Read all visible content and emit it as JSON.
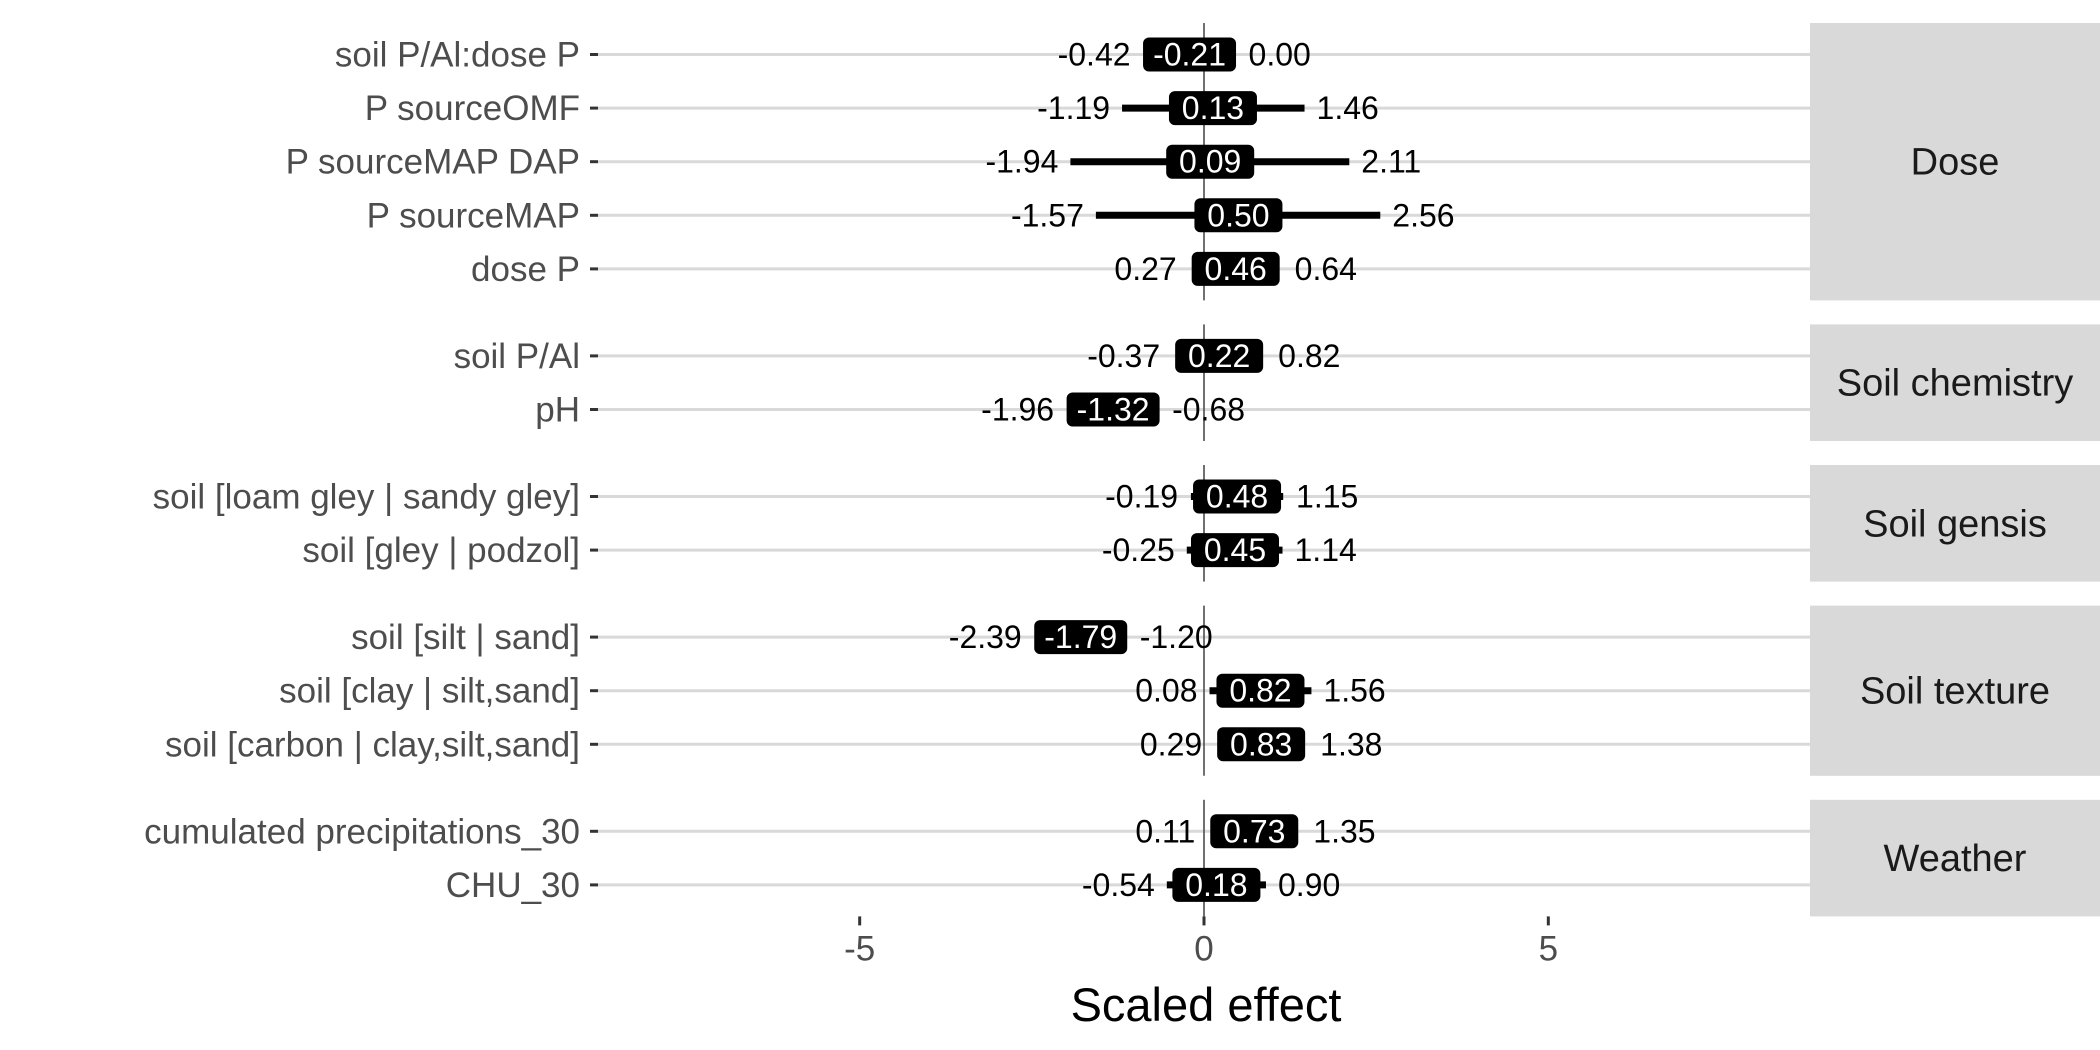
{
  "chart_data": {
    "type": "forest",
    "xlabel": "Scaled effect",
    "xlim": [
      -8.8,
      8.8
    ],
    "xticks": [
      -5,
      0,
      5
    ],
    "xtick_labels": [
      "-5",
      "0",
      "5"
    ],
    "reference_line_x": 0,
    "grid": "horizontal row lines only",
    "colors": {
      "row_line": "#d9d9d9",
      "strip": "#d9d9d9",
      "ci": "#000000",
      "estimate_fill": "#000000",
      "estimate_text": "#ffffff"
    },
    "groups": [
      {
        "name": "Dose",
        "rows": [
          {
            "label": "soil P/Al:dose P",
            "low": -0.42,
            "est": -0.21,
            "high": 0.0,
            "low_label": "-0.42",
            "est_label": "-0.21",
            "high_label": "0.00"
          },
          {
            "label": "P sourceOMF",
            "low": -1.19,
            "est": 0.13,
            "high": 1.46,
            "low_label": "-1.19",
            "est_label": "0.13",
            "high_label": "1.46"
          },
          {
            "label": "P sourceMAP DAP",
            "low": -1.94,
            "est": 0.09,
            "high": 2.11,
            "low_label": "-1.94",
            "est_label": "0.09",
            "high_label": "2.11"
          },
          {
            "label": "P sourceMAP",
            "low": -1.57,
            "est": 0.5,
            "high": 2.56,
            "low_label": "-1.57",
            "est_label": "0.50",
            "high_label": "2.56"
          },
          {
            "label": "dose P",
            "low": 0.27,
            "est": 0.46,
            "high": 0.64,
            "low_label": "0.27",
            "est_label": "0.46",
            "high_label": "0.64"
          }
        ]
      },
      {
        "name": "Soil chemistry",
        "rows": [
          {
            "label": "soil P/Al",
            "low": -0.37,
            "est": 0.22,
            "high": 0.82,
            "low_label": "-0.37",
            "est_label": "0.22",
            "high_label": "0.82"
          },
          {
            "label": "pH",
            "low": -1.96,
            "est": -1.32,
            "high": -0.68,
            "low_label": "-1.96",
            "est_label": "-1.32",
            "high_label": "-0.68"
          }
        ]
      },
      {
        "name": "Soil gensis",
        "rows": [
          {
            "label": "soil [loam gley | sandy gley]",
            "low": -0.19,
            "est": 0.48,
            "high": 1.15,
            "low_label": "-0.19",
            "est_label": "0.48",
            "high_label": "1.15"
          },
          {
            "label": "soil [gley | podzol]",
            "low": -0.25,
            "est": 0.45,
            "high": 1.14,
            "low_label": "-0.25",
            "est_label": "0.45",
            "high_label": "1.14"
          }
        ]
      },
      {
        "name": "Soil texture",
        "rows": [
          {
            "label": "soil [silt | sand]",
            "low": -2.39,
            "est": -1.79,
            "high": -1.2,
            "low_label": "-2.39",
            "est_label": "-1.79",
            "high_label": "-1.20"
          },
          {
            "label": "soil [clay | silt,sand]",
            "low": 0.08,
            "est": 0.82,
            "high": 1.56,
            "low_label": "0.08",
            "est_label": "0.82",
            "high_label": "1.56"
          },
          {
            "label": "soil [carbon | clay,silt,sand]",
            "low": 0.29,
            "est": 0.83,
            "high": 1.38,
            "low_label": "0.29",
            "est_label": "0.83",
            "high_label": "1.38"
          }
        ]
      },
      {
        "name": "Weather",
        "rows": [
          {
            "label": "cumulated precipitations_30",
            "low": 0.11,
            "est": 0.73,
            "high": 1.35,
            "low_label": "0.11",
            "est_label": "0.73",
            "high_label": "1.35"
          },
          {
            "label": "CHU_30",
            "low": -0.54,
            "est": 0.18,
            "high": 0.9,
            "low_label": "-0.54",
            "est_label": "0.18",
            "high_label": "0.90"
          }
        ]
      }
    ]
  }
}
